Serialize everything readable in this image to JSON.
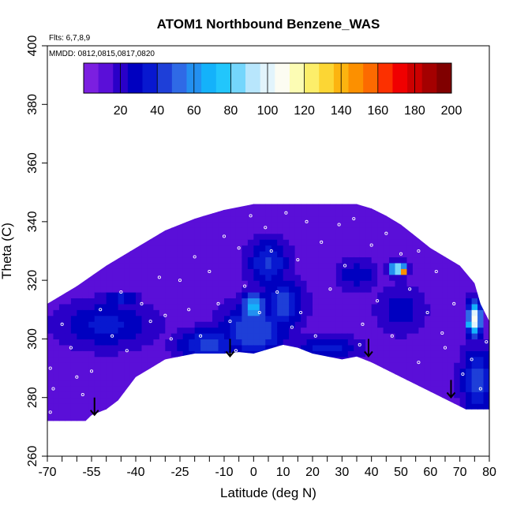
{
  "chart_data": {
    "type": "heatmap",
    "title": "ATOM1 Northbound Benzene_WAS",
    "annotations": {
      "flights": "Flts: 6,7,8,9",
      "dates": "MMDD: 0812,0815,0817,0820"
    },
    "xlabel": "Latitude (deg N)",
    "ylabel": "Theta (C)",
    "xlim": [
      -70,
      80
    ],
    "ylim": [
      260,
      400
    ],
    "x_ticks": [
      -70,
      -55,
      -40,
      -25,
      -10,
      0,
      10,
      20,
      30,
      40,
      50,
      60,
      70,
      80
    ],
    "y_ticks": [
      260,
      280,
      300,
      320,
      340,
      360,
      380,
      400
    ],
    "colorbar": {
      "min": 0,
      "max": 200,
      "ticks": [
        20,
        40,
        60,
        80,
        100,
        120,
        140,
        160,
        180,
        200
      ],
      "colors": [
        "#7b1fe0",
        "#5a0fd8",
        "#2a00c8",
        "#0000c0",
        "#0818d0",
        "#1e3fd8",
        "#2f6ae6",
        "#2390f0",
        "#14b2fa",
        "#22c6fc",
        "#74d6fc",
        "#b8e6fc",
        "#e2f4fc",
        "#fcfcf2",
        "#fcfcb4",
        "#fcee6a",
        "#fcd634",
        "#fcb410",
        "#fc9000",
        "#fc6a00",
        "#fc3000",
        "#f00000",
        "#cc0000",
        "#a40000",
        "#800000"
      ]
    },
    "field": {
      "background_value": 10,
      "domain_outline": [
        [
          -70,
          272
        ],
        [
          -57,
          272
        ],
        [
          -55,
          274
        ],
        [
          -50,
          276
        ],
        [
          -46,
          279
        ],
        [
          -40,
          287
        ],
        [
          -35,
          290
        ],
        [
          -30,
          293
        ],
        [
          -20,
          295
        ],
        [
          -10,
          295
        ],
        [
          -5,
          295.5
        ],
        [
          0,
          295
        ],
        [
          10,
          298
        ],
        [
          15,
          297
        ],
        [
          20,
          295
        ],
        [
          30,
          293
        ],
        [
          35,
          294
        ],
        [
          40,
          292
        ],
        [
          50,
          287
        ],
        [
          60,
          282
        ],
        [
          70,
          277
        ],
        [
          72,
          276
        ],
        [
          80,
          276
        ],
        [
          80,
          306
        ],
        [
          77,
          312
        ],
        [
          75,
          319
        ],
        [
          70,
          325
        ],
        [
          60,
          331
        ],
        [
          55,
          335
        ],
        [
          50,
          339
        ],
        [
          45,
          342
        ],
        [
          40,
          344.5
        ],
        [
          35,
          346
        ],
        [
          0,
          346
        ],
        [
          -10,
          344
        ],
        [
          -20,
          341
        ],
        [
          -30,
          337
        ],
        [
          -40,
          331
        ],
        [
          -50,
          325
        ],
        [
          -60,
          318
        ],
        [
          -70,
          312
        ]
      ],
      "features": [
        {
          "lat": -50,
          "theta": 305,
          "value": 35,
          "sigma_lat": 12,
          "sigma_theta": 6
        },
        {
          "lat": -45,
          "theta": 314,
          "value": 40,
          "sigma_lat": 4,
          "sigma_theta": 1.5
        },
        {
          "lat": -15,
          "theta": 298,
          "value": 45,
          "sigma_lat": 8,
          "sigma_theta": 4
        },
        {
          "lat": 0,
          "theta": 303,
          "value": 48,
          "sigma_lat": 8,
          "sigma_theta": 7
        },
        {
          "lat": 0,
          "theta": 311,
          "value": 72,
          "sigma_lat": 3,
          "sigma_theta": 3.5
        },
        {
          "lat": 5,
          "theta": 326,
          "value": 42,
          "sigma_lat": 5,
          "sigma_theta": 6
        },
        {
          "lat": 10,
          "theta": 312,
          "value": 45,
          "sigma_lat": 5,
          "sigma_theta": 6
        },
        {
          "lat": 25,
          "theta": 297,
          "value": 35,
          "sigma_lat": 8,
          "sigma_theta": 3
        },
        {
          "lat": 35,
          "theta": 322,
          "value": 30,
          "sigma_lat": 5,
          "sigma_theta": 4
        },
        {
          "lat": 50,
          "theta": 310,
          "value": 30,
          "sigma_lat": 6,
          "sigma_theta": 6
        },
        {
          "lat": 49,
          "theta": 324,
          "value": 105,
          "sigma_lat": 2,
          "sigma_theta": 1.5
        },
        {
          "lat": 51,
          "theta": 323,
          "value": 150,
          "sigma_lat": 0.8,
          "sigma_theta": 0.8
        },
        {
          "lat": 76,
          "theta": 286,
          "value": 45,
          "sigma_lat": 4,
          "sigma_theta": 8
        },
        {
          "lat": 75,
          "theta": 307,
          "value": 110,
          "sigma_lat": 1.6,
          "sigma_theta": 4
        },
        {
          "lat": 74,
          "theta": 305,
          "value": 170,
          "sigma_lat": 0.7,
          "sigma_theta": 1.2
        }
      ]
    },
    "arrows": [
      {
        "lat": -54,
        "theta": 280
      },
      {
        "lat": -8,
        "theta": 300
      },
      {
        "lat": 39,
        "theta": 300
      },
      {
        "lat": 67,
        "theta": 286
      }
    ],
    "sample_points": [
      [
        -65,
        305
      ],
      [
        -62,
        297
      ],
      [
        -58,
        281
      ],
      [
        -55,
        289
      ],
      [
        -52,
        310
      ],
      [
        -48,
        301
      ],
      [
        -45,
        316
      ],
      [
        -40,
        282
      ],
      [
        -38,
        312
      ],
      [
        -35,
        306
      ],
      [
        -32,
        321
      ],
      [
        -28,
        300
      ],
      [
        -25,
        320
      ],
      [
        -22,
        310
      ],
      [
        -20,
        328
      ],
      [
        -18,
        301
      ],
      [
        -15,
        323
      ],
      [
        -12,
        312
      ],
      [
        -10,
        335
      ],
      [
        -8,
        306
      ],
      [
        -5,
        331
      ],
      [
        -3,
        318
      ],
      [
        -1,
        342
      ],
      [
        2,
        309
      ],
      [
        4,
        338
      ],
      [
        6,
        330
      ],
      [
        8,
        316
      ],
      [
        11,
        343
      ],
      [
        13,
        304
      ],
      [
        15,
        327
      ],
      [
        18,
        340
      ],
      [
        21,
        301
      ],
      [
        23,
        333
      ],
      [
        26,
        317
      ],
      [
        29,
        339
      ],
      [
        31,
        325
      ],
      [
        34,
        341
      ],
      [
        37,
        305
      ],
      [
        40,
        332
      ],
      [
        42,
        313
      ],
      [
        45,
        336
      ],
      [
        47,
        301
      ],
      [
        50,
        329
      ],
      [
        53,
        317
      ],
      [
        56,
        330
      ],
      [
        59,
        309
      ],
      [
        62,
        323
      ],
      [
        65,
        297
      ],
      [
        68,
        312
      ],
      [
        71,
        288
      ],
      [
        74,
        293
      ],
      [
        77,
        283
      ],
      [
        79,
        299
      ],
      [
        -69,
        290
      ],
      [
        -68,
        283
      ],
      [
        -69,
        275
      ],
      [
        -60,
        287
      ],
      [
        -43,
        296
      ],
      [
        -30,
        308
      ],
      [
        -6,
        296
      ],
      [
        16,
        309
      ],
      [
        36,
        298
      ],
      [
        56,
        292
      ],
      [
        64,
        302
      ],
      [
        76,
        320
      ]
    ]
  }
}
